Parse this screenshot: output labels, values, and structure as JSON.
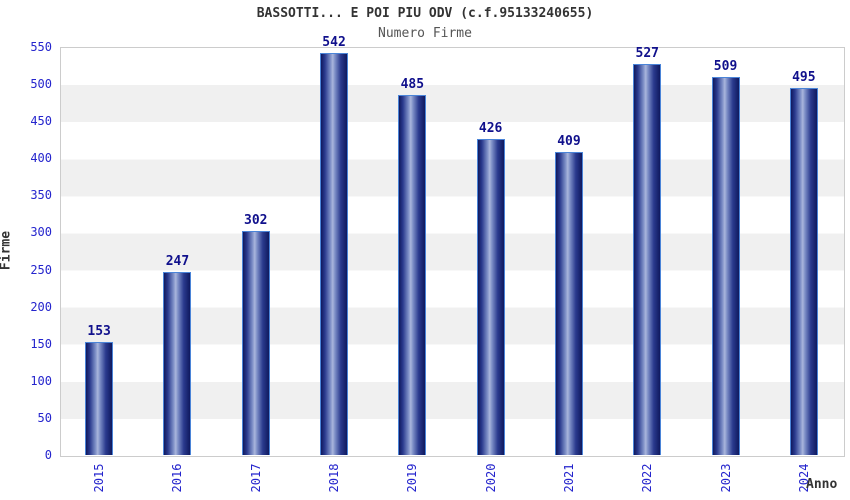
{
  "header": {
    "title": "BASSOTTI... E POI PIU ODV (c.f.95133240655)",
    "subtitle": "Numero Firme"
  },
  "chart_data": {
    "type": "bar",
    "title": "BASSOTTI... E POI PIU ODV (c.f.95133240655)",
    "subtitle": "Numero Firme",
    "categories": [
      "2015",
      "2016",
      "2017",
      "2018",
      "2019",
      "2020",
      "2021",
      "2022",
      "2023",
      "2024"
    ],
    "values": [
      153,
      247,
      302,
      542,
      485,
      426,
      409,
      527,
      509,
      495
    ],
    "xlabel": "Anno",
    "ylabel": "Firme",
    "ylim": [
      0,
      550
    ],
    "ytick_step": 50,
    "yticks": [
      0,
      50,
      100,
      150,
      200,
      250,
      300,
      350,
      400,
      450,
      500,
      550
    ],
    "legend": "none",
    "grid": "alternating-horizontal-bands-per-50",
    "colors": {
      "bar_dark": "#10195e",
      "bar_mid": "#2a3a8e",
      "bar_light": "#a9b5dc",
      "bar_border": "#4a84d8",
      "value_label": "#10108c",
      "tick_label": "#2525cd",
      "title": "#333333",
      "subtitle": "#555555",
      "band_gray": "#f0f0f0",
      "band_white": "#ffffff",
      "plot_border": "#cccccc"
    }
  }
}
